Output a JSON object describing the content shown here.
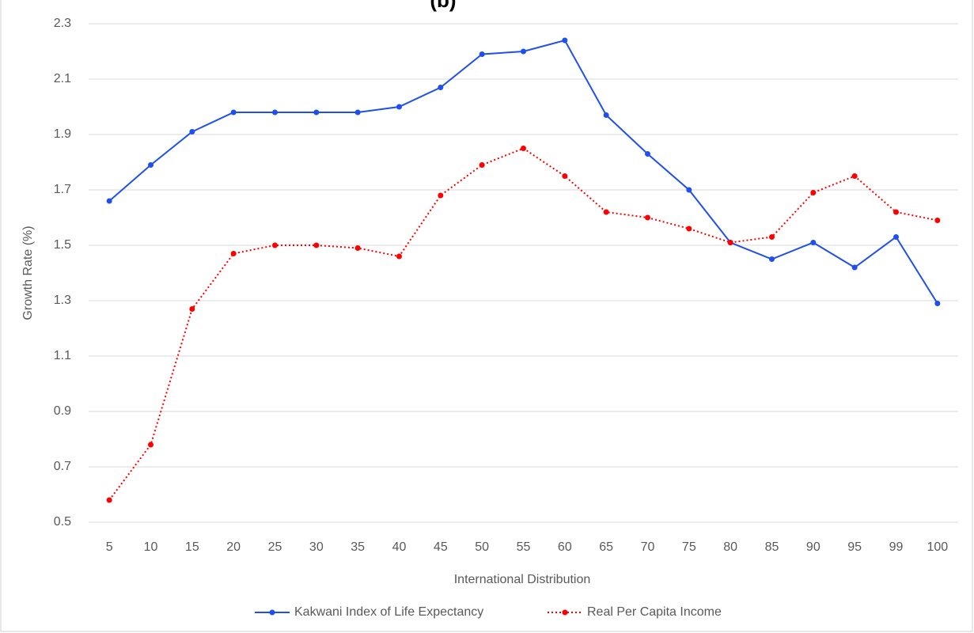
{
  "chart_data": {
    "type": "line",
    "title": "(b)",
    "x_label": "International Distribution",
    "y_label": "Growth Rate (%)",
    "categories": [
      "5",
      "10",
      "15",
      "20",
      "25",
      "30",
      "35",
      "40",
      "45",
      "50",
      "55",
      "60",
      "65",
      "70",
      "75",
      "80",
      "85",
      "90",
      "95",
      "99",
      "100"
    ],
    "series": [
      {
        "name": "Kakwani Index of Life Expectancy",
        "color": "#1f4ff0",
        "dash": "solid",
        "values": [
          1.66,
          1.79,
          1.91,
          1.98,
          1.98,
          1.98,
          1.98,
          2.0,
          2.07,
          2.19,
          2.2,
          2.24,
          1.97,
          1.83,
          1.7,
          1.51,
          1.45,
          1.51,
          1.42,
          1.53,
          1.29
        ]
      },
      {
        "name": "Real Per Capita Income",
        "color": "#ff0000",
        "dash": "dotted",
        "values": [
          0.58,
          0.78,
          1.27,
          1.47,
          1.5,
          1.5,
          1.49,
          1.46,
          1.68,
          1.79,
          1.85,
          1.75,
          1.62,
          1.6,
          1.56,
          1.51,
          1.53,
          1.69,
          1.75,
          1.62,
          1.59
        ]
      }
    ],
    "ylim": [
      0.5,
      2.3
    ],
    "yticks": [
      0.5,
      0.7,
      0.9,
      1.1,
      1.3,
      1.5,
      1.7,
      1.9,
      2.1,
      2.3
    ],
    "grid": true,
    "legend": "bottom"
  }
}
